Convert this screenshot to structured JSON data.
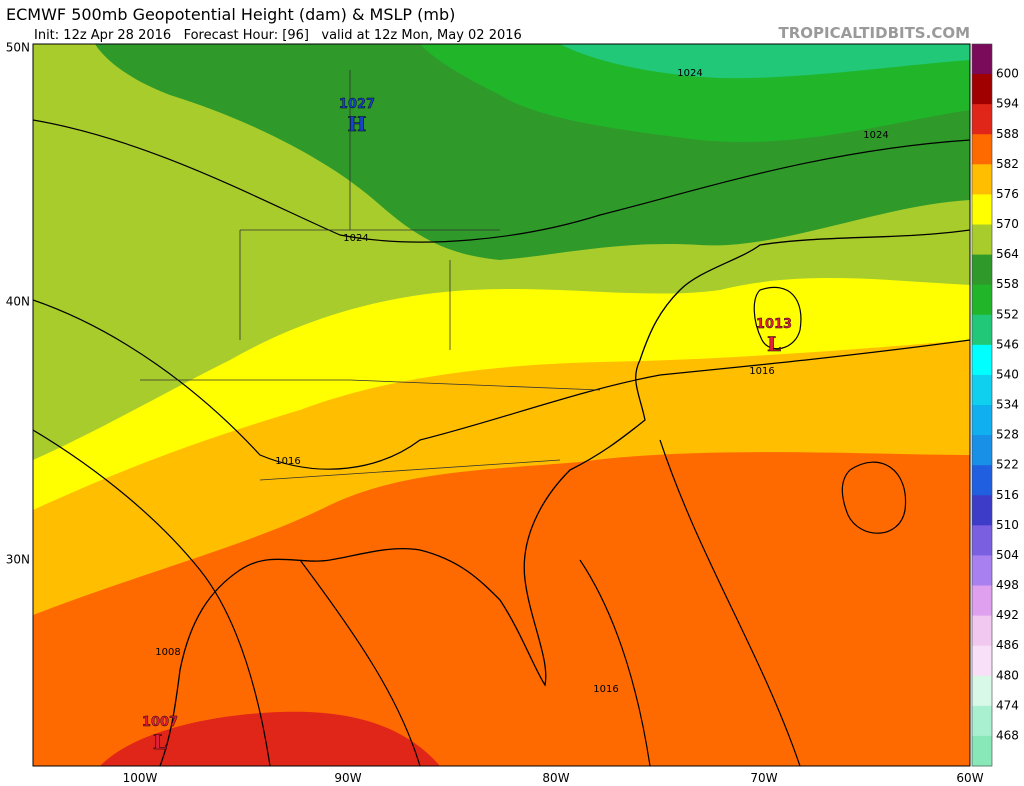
{
  "header": {
    "title": "ECMWF 500mb Geopotential Height (dam) & MSLP (mb)",
    "subtitle": "Init: 12z Apr 28 2016   Forecast Hour: [96]   valid at 12z Mon, May 02 2016",
    "watermark": "TROPICALTIDBITS.COM"
  },
  "map": {
    "lat_labels": [
      "50N",
      "40N",
      "30N"
    ],
    "lon_labels": [
      "100W",
      "90W",
      "80W",
      "70W",
      "60W"
    ],
    "pressure_centers": [
      {
        "value": "1027",
        "symbol": "H",
        "color": "#1844c8"
      },
      {
        "value": "1013",
        "symbol": "L",
        "color": "#e0203c"
      },
      {
        "value": "1007",
        "symbol": "L",
        "color": "#e0203c"
      }
    ],
    "contour_labels": [
      "1024",
      "1024",
      "1024",
      "1016",
      "1016",
      "1016",
      "1008"
    ]
  },
  "colorbar": {
    "levels": [
      600,
      594,
      588,
      582,
      576,
      570,
      564,
      558,
      552,
      546,
      540,
      534,
      528,
      522,
      516,
      510,
      504,
      498,
      492,
      486,
      480,
      474,
      468
    ],
    "colors": [
      "#7a0a5a",
      "#a00000",
      "#e02618",
      "#ff6a00",
      "#ffbe00",
      "#ffff00",
      "#a8cc2c",
      "#2f9a2a",
      "#21b52a",
      "#20c878",
      "#00ffff",
      "#10d0f0",
      "#10b0f0",
      "#1890e8",
      "#2060e0",
      "#3c3cc8",
      "#7a60e0",
      "#a880f0",
      "#e0a0f0",
      "#f0c8f0",
      "#f8e0f8",
      "#d8f8e8",
      "#a8f0d0",
      "#88e8b8"
    ]
  }
}
